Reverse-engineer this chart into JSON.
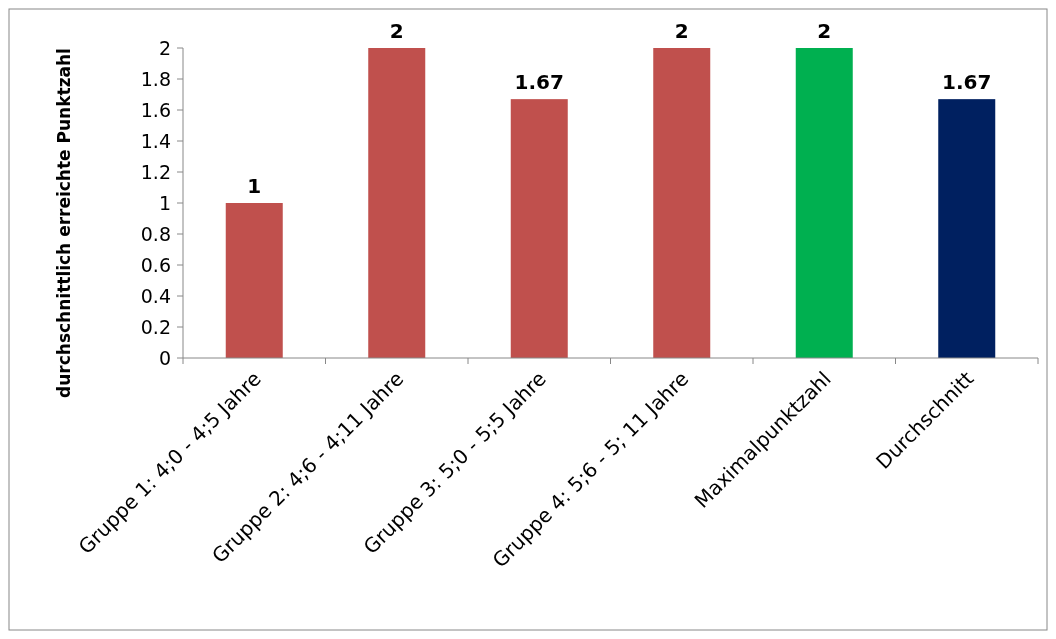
{
  "chart_data": {
    "type": "bar",
    "ylabel": "durchschnittlich erreichte Punktzahl",
    "categories": [
      "Gruppe 1: 4;0 - 4;5 Jahre",
      "Gruppe 2: 4;6 - 4;11 Jahre",
      "Gruppe 3: 5;0 - 5;5 Jahre",
      "Gruppe 4: 5;6 - 5; 11 Jahre",
      "Maximalpunktzahl",
      "Durchschnitt"
    ],
    "values": [
      1,
      2,
      1.67,
      2,
      2,
      1.67
    ],
    "colors": [
      "#c0504d",
      "#c0504d",
      "#c0504d",
      "#c0504d",
      "#00b050",
      "#002060"
    ],
    "ylim": [
      0,
      2
    ],
    "yticks": [
      0,
      0.2,
      0.4,
      0.6,
      0.8,
      1,
      1.2,
      1.4,
      1.6,
      1.8,
      2
    ],
    "data_labels": true,
    "grid": false
  }
}
